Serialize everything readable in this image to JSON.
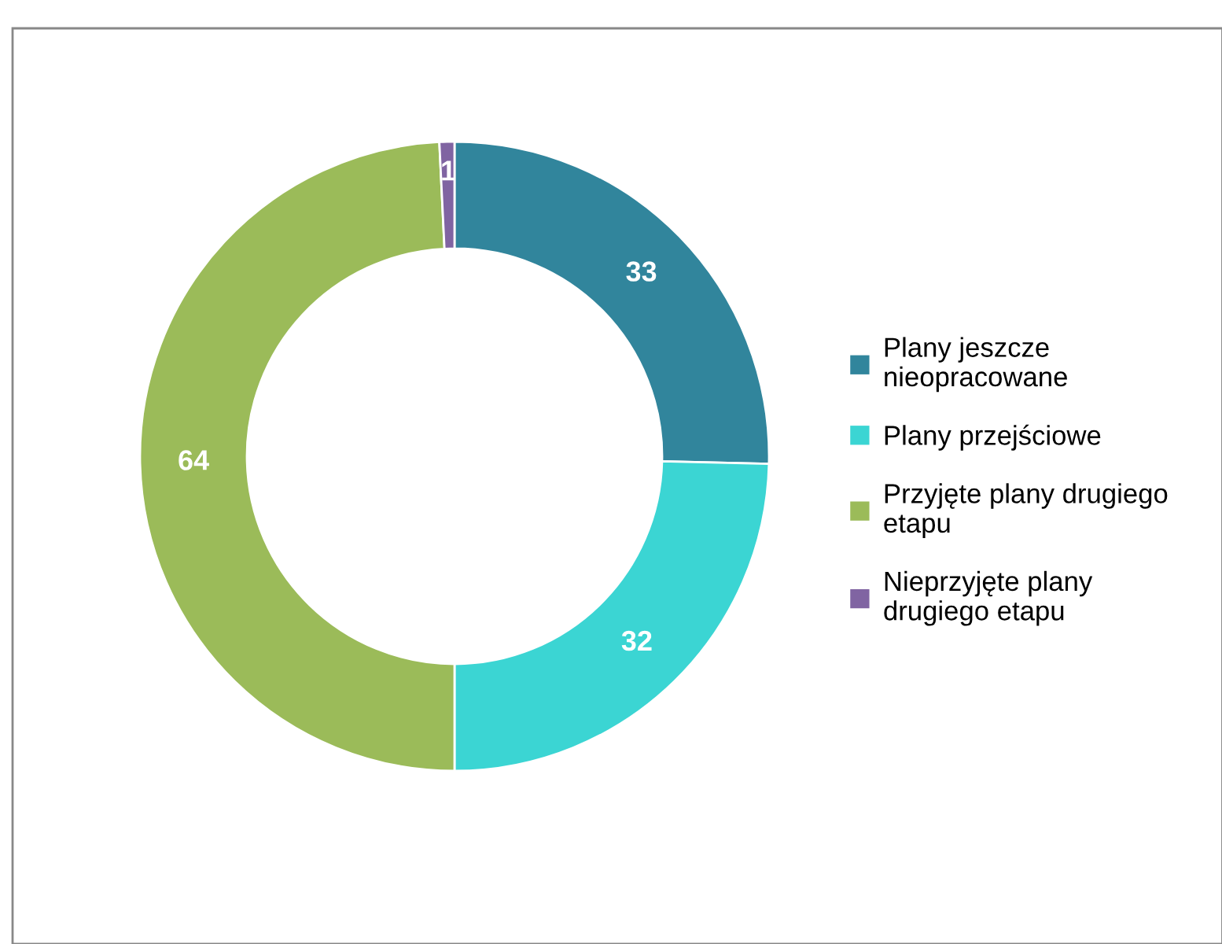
{
  "chart_data": {
    "type": "donut",
    "categories": [
      "Plany jeszcze\nnieopracowane",
      "Plany przejściowe",
      "Przyjęte plany drugiego\netapu",
      "Nieprzyjęte plany\ndrugiego etapu"
    ],
    "values": [
      33,
      32,
      64,
      1
    ],
    "colors": [
      "#31859c",
      "#3bd5d3",
      "#9bbb59",
      "#8064a2"
    ],
    "data_labels": true,
    "legend": "right"
  }
}
